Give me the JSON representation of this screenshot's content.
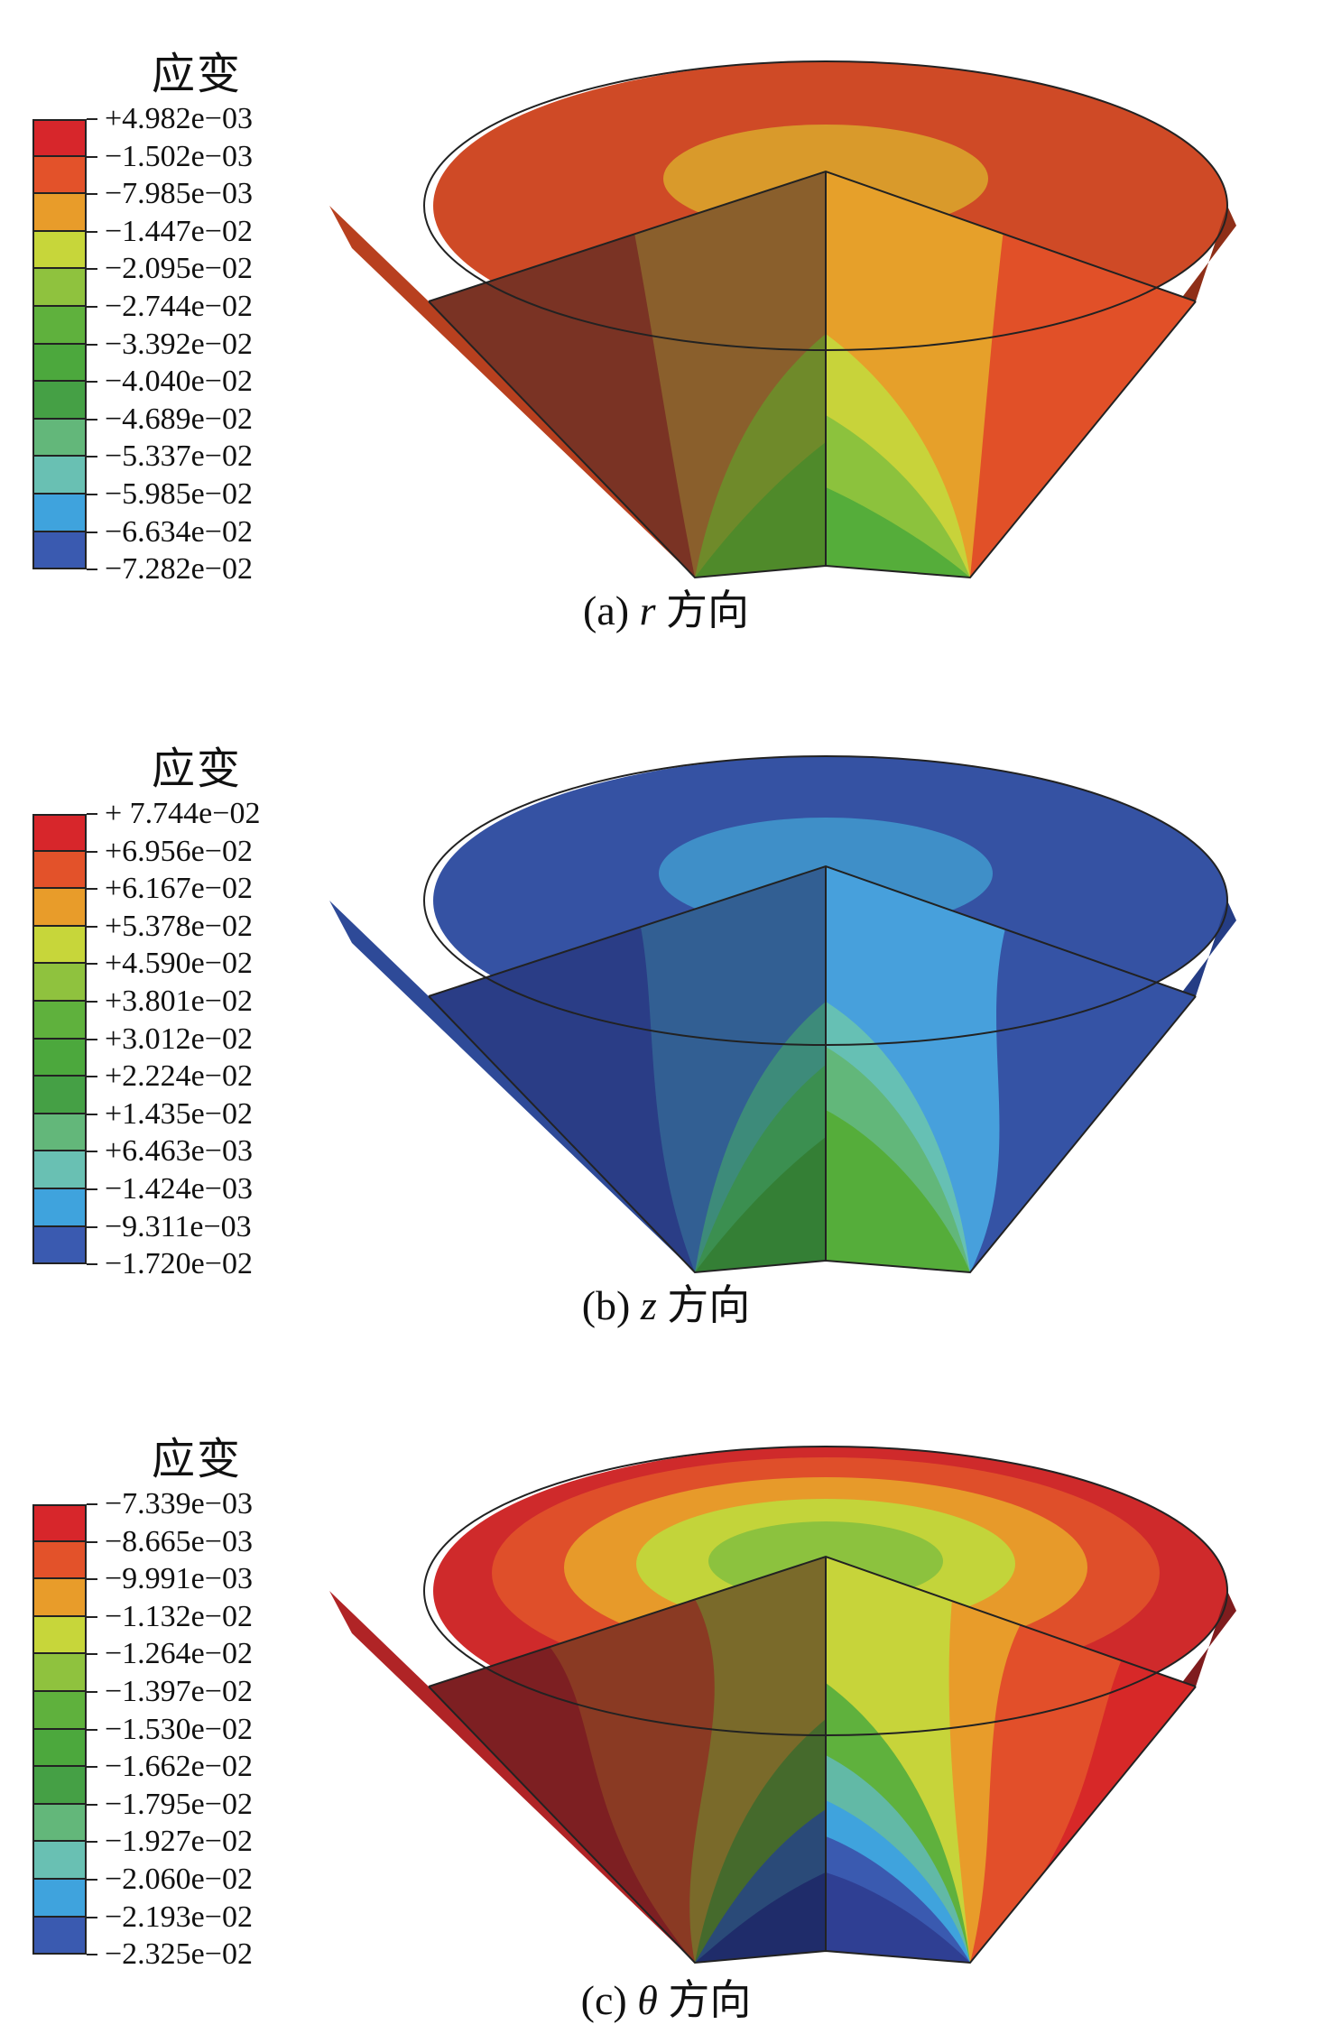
{
  "panels": [
    {
      "legend_title": "应变",
      "legend_labels": [
        "+4.982e−03",
        "−1.502e−03",
        "−7.985e−03",
        "−1.447e−02",
        "−2.095e−02",
        "−2.744e−02",
        "−3.392e−02",
        "−4.040e−02",
        "−4.689e−02",
        "−5.337e−02",
        "−5.985e−02",
        "−6.634e−02",
        "−7.282e−02"
      ],
      "caption_prefix": "(a) ",
      "caption_var": "r",
      "caption_suffix": " 方向"
    },
    {
      "legend_title": "应变",
      "legend_labels": [
        "+ 7.744e−02",
        "+6.956e−02",
        "+6.167e−02",
        "+5.378e−02",
        "+4.590e−02",
        "+3.801e−02",
        "+3.012e−02",
        "+2.224e−02",
        "+1.435e−02",
        "+6.463e−03",
        "−1.424e−03",
        "−9.311e−03",
        "−1.720e−02"
      ],
      "caption_prefix": "(b) ",
      "caption_var": "z",
      "caption_suffix": " 方向"
    },
    {
      "legend_title": "应变",
      "legend_labels": [
        "−7.339e−03",
        "−8.665e−03",
        "−9.991e−03",
        "−1.132e−02",
        "−1.264e−02",
        "−1.397e−02",
        "−1.530e−02",
        "−1.662e−02",
        "−1.795e−02",
        "−1.927e−02",
        "−2.060e−02",
        "−2.193e−02",
        "−2.325e−02"
      ],
      "caption_prefix": "(c) ",
      "caption_var": "θ",
      "caption_suffix": " 方向"
    }
  ],
  "legend_colors": [
    "#d7262b",
    "#e3522a",
    "#e89c2a",
    "#c7d63a",
    "#8fc23e",
    "#5fb13d",
    "#4ca83d",
    "#45a045",
    "#63b77a",
    "#69c0b3",
    "#3fa3dd",
    "#3a5ab0",
    "#2f3f93"
  ]
}
